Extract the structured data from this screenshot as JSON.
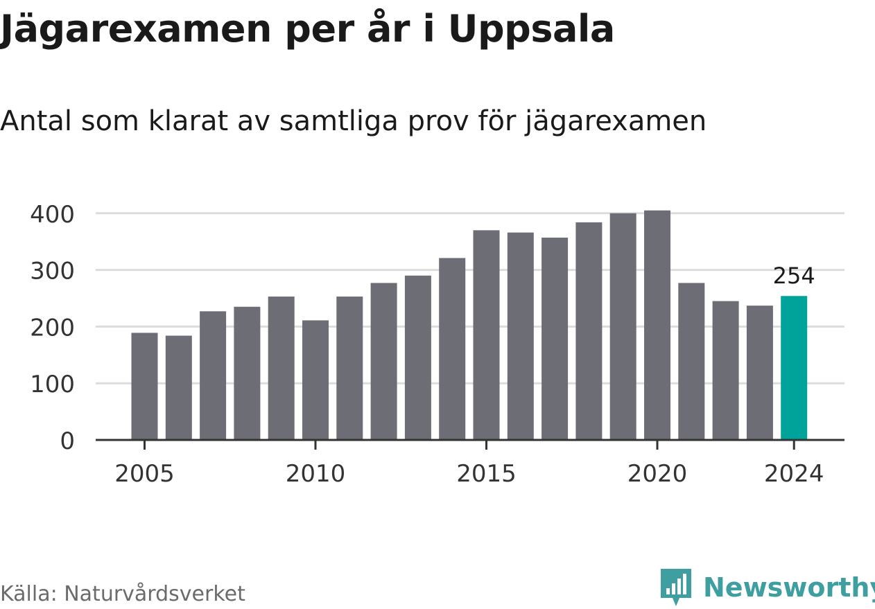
{
  "header": {
    "title": "Jägarexamen per år i Uppsala",
    "subtitle": "Antal som klarat av samtliga prov för jägarexamen"
  },
  "footer": {
    "source": "Källa: Naturvårdsverket",
    "brand_name": "Newsworthy"
  },
  "colors": {
    "bar": "#6d6d75",
    "highlight": "#00a39a",
    "grid": "#dcdcdc",
    "axis": "#333333",
    "brand": "#3e9ea0"
  },
  "chart_data": {
    "type": "bar",
    "categories": [
      "2005",
      "2006",
      "2007",
      "2008",
      "2009",
      "2010",
      "2011",
      "2012",
      "2013",
      "2014",
      "2015",
      "2016",
      "2017",
      "2018",
      "2019",
      "2020",
      "2021",
      "2022",
      "2023",
      "2024"
    ],
    "values": [
      189,
      184,
      227,
      235,
      253,
      211,
      253,
      277,
      290,
      321,
      370,
      366,
      357,
      384,
      400,
      405,
      277,
      245,
      237,
      254
    ],
    "highlight_category": "2024",
    "value_label": {
      "category": "2024",
      "text": "254"
    },
    "x_tick_labels": [
      "2005",
      "2010",
      "2015",
      "2020",
      "2024"
    ],
    "y_ticks": [
      0,
      100,
      200,
      300,
      400
    ],
    "ylim": [
      0,
      420
    ],
    "grid": true,
    "legend": "none"
  }
}
